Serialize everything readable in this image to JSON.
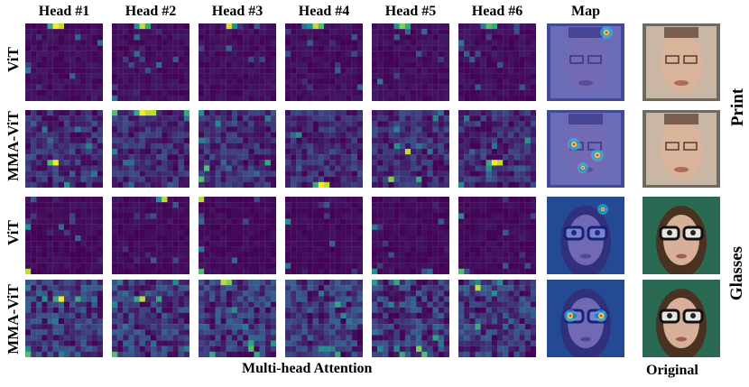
{
  "headers": {
    "heads": [
      "Head #1",
      "Head #2",
      "Head #3",
      "Head #4",
      "Head #5",
      "Head #6"
    ],
    "map": "Map"
  },
  "rows": [
    {
      "model": "ViT",
      "group": "Print"
    },
    {
      "model": "MMA-ViT",
      "group": "Print"
    },
    {
      "model": "ViT",
      "group": "Glasses"
    },
    {
      "model": "MMA-ViT",
      "group": "Glasses"
    }
  ],
  "groups": [
    "Print",
    "Glasses"
  ],
  "footer": {
    "center": "Multi-head Attention",
    "right": "Original"
  },
  "colors": {
    "viridis_low": "#440154",
    "viridis_mid": "#21918c",
    "viridis_high": "#fde725"
  }
}
